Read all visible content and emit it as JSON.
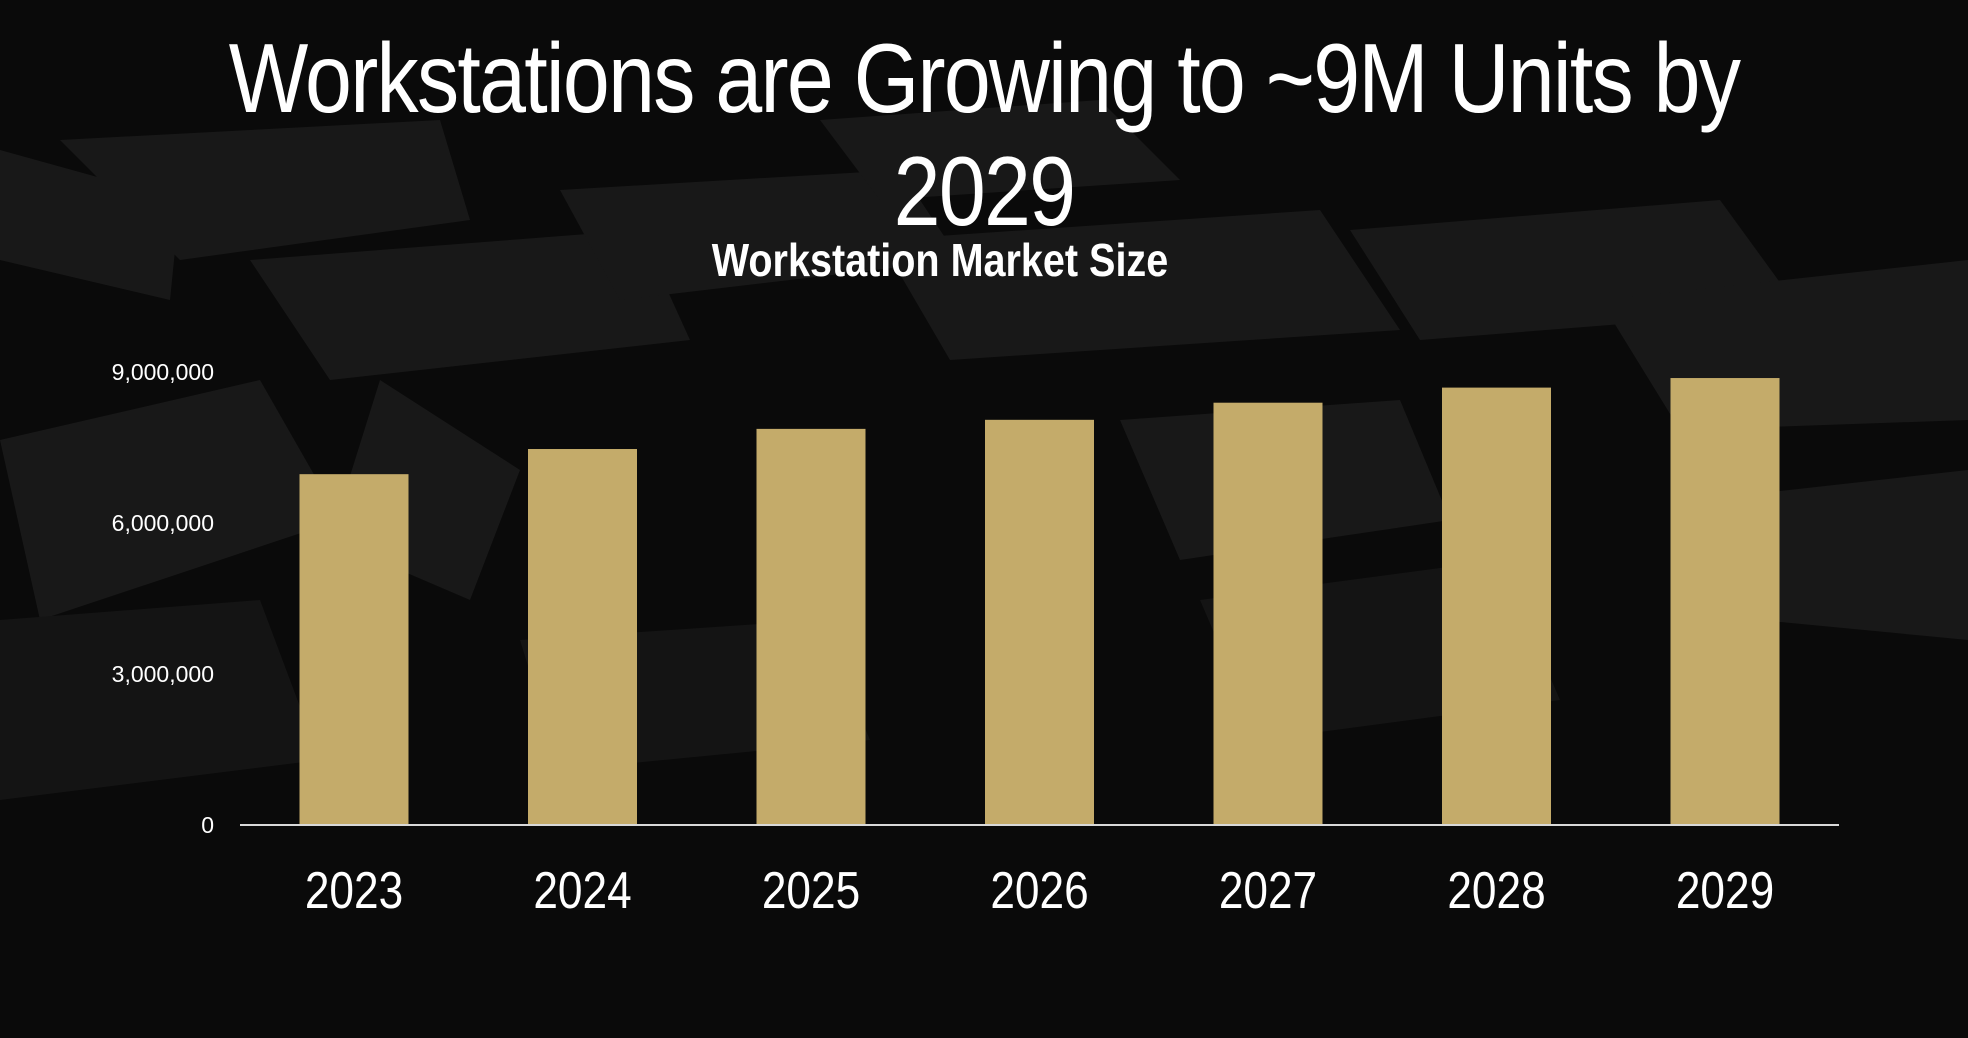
{
  "slide": {
    "title": "Workstations are Growing to ~9M Units by 2029"
  },
  "chart_data": {
    "type": "bar",
    "title": "Workstation Market Size",
    "categories": [
      "2023",
      "2024",
      "2025",
      "2026",
      "2027",
      "2028",
      "2029"
    ],
    "values": [
      6970000,
      7470000,
      7870000,
      8050000,
      8390000,
      8690000,
      8880000
    ],
    "xlabel": "",
    "ylabel": "",
    "ylim": [
      0,
      9000000
    ],
    "yticks": [
      0,
      3000000,
      6000000,
      9000000
    ],
    "ytick_labels": [
      "0",
      "3,000,000",
      "6,000,000",
      "9,000,000"
    ],
    "grid": false,
    "legend": "none",
    "colors": {
      "bar": "#c4ab6a",
      "axis": "#d9d9d9",
      "text": "#ffffff",
      "background": "#0a0a0a"
    }
  }
}
